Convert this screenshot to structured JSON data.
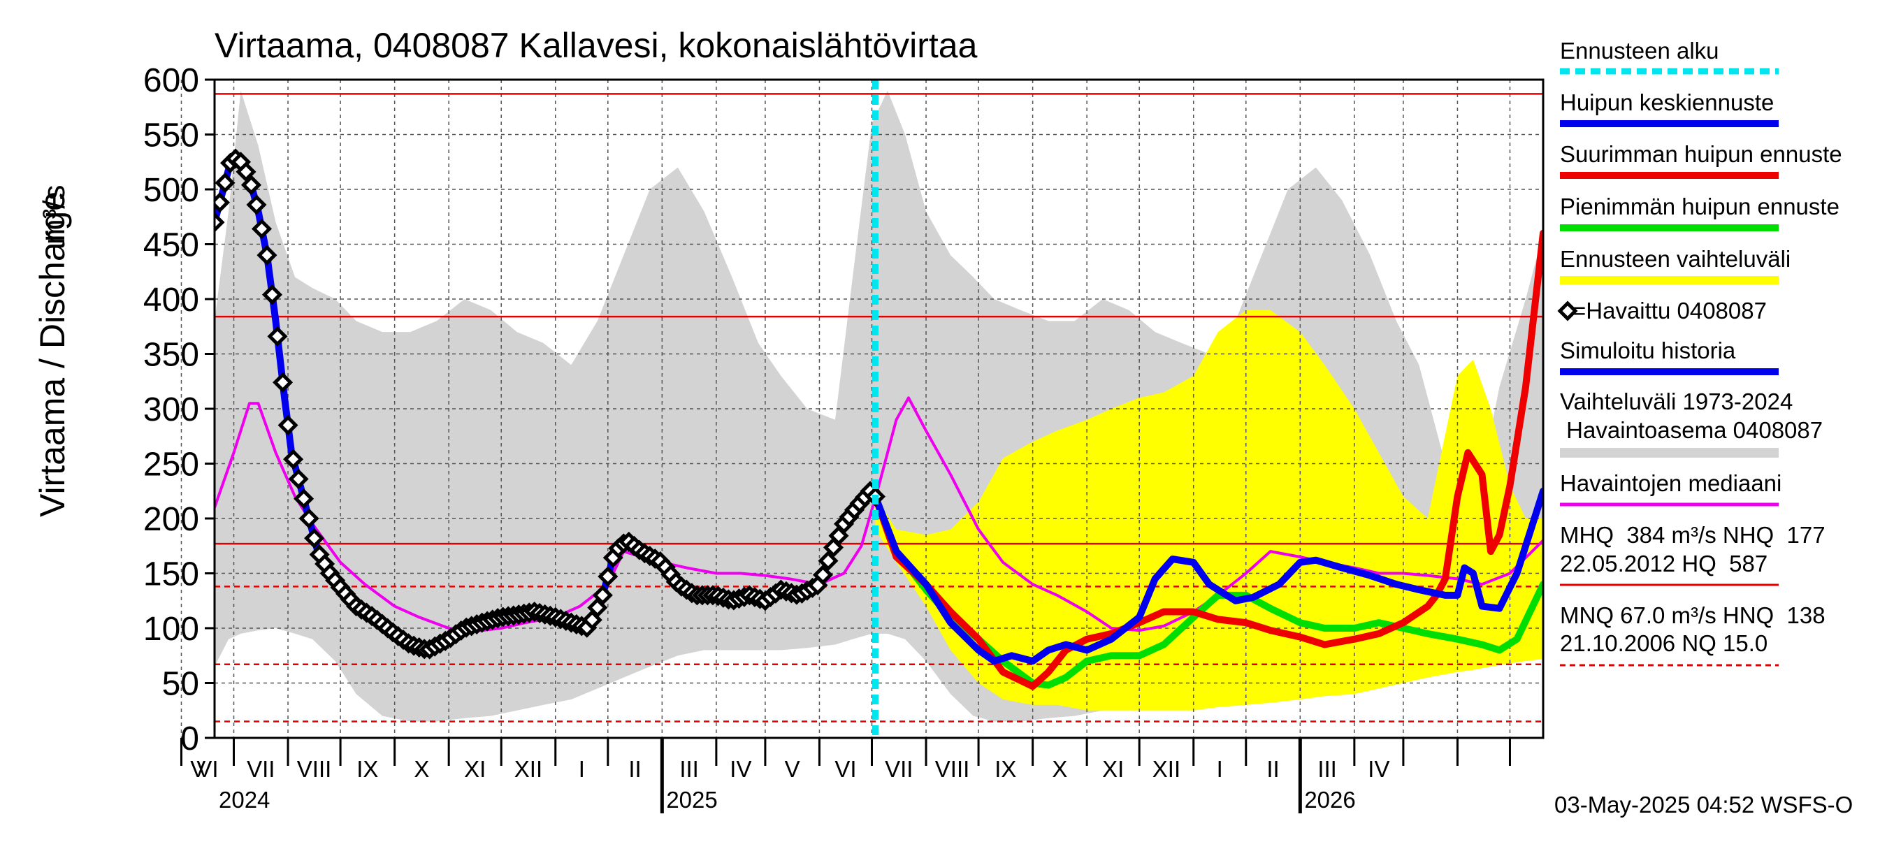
{
  "chart_data": {
    "type": "line",
    "title": "Virtaama, 0408087 Kallavesi, kokonaislähtövirtaa",
    "ylabel": "Virtaama / Discharge",
    "yunit": "m³/s",
    "ylim": [
      0,
      600
    ],
    "yticks": [
      "0",
      "50",
      "100",
      "150",
      "200",
      "250",
      "300",
      "350",
      "400",
      "450",
      "500",
      "550",
      "600"
    ],
    "xlim": [
      "2024-04-20",
      "2026-05-20"
    ],
    "forecast_start": "2025-05-03",
    "months": [
      "V",
      "VI",
      "VII",
      "VIII",
      "IX",
      "X",
      "XI",
      "XII",
      "I",
      "II",
      "III",
      "IV",
      "V",
      "VI",
      "VII",
      "VIII",
      "IX",
      "X",
      "XI",
      "XII",
      "I",
      "II",
      "III",
      "IV"
    ],
    "years": [
      "2024",
      "2025",
      "2026"
    ],
    "grid": true,
    "legend_position": "right",
    "reference_lines": {
      "solid": [
        587,
        384,
        177
      ],
      "dashed": [
        138,
        67,
        15
      ]
    },
    "legend": {
      "forecast_start": "Ennusteen alku",
      "mean_peak": "Huipun keskiennuste",
      "max_peak": "Suurimman huipun ennuste",
      "min_peak": "Pienimmän huipun ennuste",
      "forecast_range": "Ennusteen vaihteluväli",
      "observed": "=Havaittu 0408087",
      "simulated": "Simuloitu historia",
      "hist_range_1": "Vaihteluväli 1973-2024",
      "hist_range_2": " Havaintoasema 0408087",
      "median": "Havaintojen mediaani",
      "stats_1": "MHQ  384 m³/s NHQ  177",
      "stats_2": "22.05.2012 HQ  587",
      "stats_3": "MNQ 67.0 m³/s HNQ  138",
      "stats_4": "21.10.2006 NQ 15.0"
    },
    "footer": "03-May-2025 04:52 WSFS-O",
    "colors": {
      "forecast_start": "#00e5ee",
      "mean_peak": "#0000ee",
      "max_peak": "#ee0000",
      "min_peak": "#00dd00",
      "forecast_range": "#ffff00",
      "hist_range": "#d3d3d3",
      "median": "#ee00ee",
      "reference": "#e00000"
    },
    "series": [
      {
        "name": "Vaihteluväli 1973-2024 Havaintoasema 0408087",
        "kind": "band",
        "x": [
          "2024-04-20",
          "2024-04-28",
          "2024-05-05",
          "2024-05-15",
          "2024-05-25",
          "2024-06-05",
          "2024-06-15",
          "2024-06-28",
          "2024-07-10",
          "2024-07-25",
          "2024-08-10",
          "2024-08-25",
          "2024-09-10",
          "2024-09-25",
          "2024-10-10",
          "2024-10-25",
          "2024-11-10",
          "2024-11-25",
          "2024-12-10",
          "2024-12-25",
          "2025-01-10",
          "2025-01-25",
          "2025-02-10",
          "2025-02-25",
          "2025-03-10",
          "2025-03-25",
          "2025-04-10",
          "2025-04-20",
          "2025-05-01",
          "2025-05-10",
          "2025-05-20",
          "2025-06-01",
          "2025-06-15",
          "2025-06-28",
          "2025-07-10",
          "2025-07-25",
          "2025-08-10",
          "2025-08-25",
          "2025-09-10",
          "2025-09-25",
          "2025-10-10",
          "2025-10-25",
          "2025-11-10",
          "2025-11-25",
          "2025-12-10",
          "2025-12-25",
          "2026-01-10",
          "2026-01-25",
          "2026-02-10",
          "2026-02-25",
          "2026-03-10",
          "2026-03-25",
          "2026-04-10",
          "2026-04-25",
          "2026-05-10",
          "2026-05-20"
        ],
        "high": [
          380,
          480,
          590,
          540,
          470,
          420,
          410,
          400,
          380,
          370,
          370,
          380,
          400,
          390,
          370,
          360,
          340,
          380,
          440,
          500,
          520,
          480,
          420,
          360,
          330,
          300,
          290,
          420,
          560,
          590,
          550,
          480,
          440,
          420,
          400,
          390,
          380,
          380,
          400,
          390,
          370,
          360,
          350,
          380,
          440,
          500,
          520,
          490,
          440,
          380,
          340,
          250,
          200,
          320,
          400,
          460
        ],
        "low": [
          65,
          90,
          95,
          98,
          100,
          95,
          90,
          70,
          40,
          20,
          15,
          15,
          18,
          20,
          25,
          30,
          35,
          45,
          55,
          65,
          75,
          80,
          80,
          80,
          80,
          82,
          85,
          90,
          95,
          95,
          90,
          70,
          40,
          20,
          15,
          15,
          18,
          20,
          25,
          30,
          35,
          40,
          45,
          55,
          65,
          70,
          75,
          78,
          80,
          80,
          82,
          82,
          85,
          90,
          92,
          95
        ]
      },
      {
        "name": "Ennusteen vaihteluväli",
        "kind": "band",
        "x": [
          "2025-05-03",
          "2025-05-15",
          "2025-06-01",
          "2025-06-15",
          "2025-07-01",
          "2025-07-15",
          "2025-08-01",
          "2025-08-15",
          "2025-09-01",
          "2025-09-15",
          "2025-10-01",
          "2025-10-15",
          "2025-11-01",
          "2025-11-15",
          "2025-12-01",
          "2025-12-15",
          "2026-01-01",
          "2026-01-15",
          "2026-02-01",
          "2026-02-15",
          "2026-03-01",
          "2026-03-15",
          "2026-04-01",
          "2026-04-10",
          "2026-04-20",
          "2026-05-01",
          "2026-05-10",
          "2026-05-20"
        ],
        "high": [
          220,
          190,
          185,
          190,
          215,
          255,
          270,
          280,
          290,
          300,
          310,
          315,
          330,
          370,
          390,
          390,
          370,
          340,
          300,
          260,
          220,
          200,
          330,
          345,
          300,
          230,
          200,
          200
        ],
        "low": [
          190,
          160,
          120,
          80,
          50,
          35,
          30,
          30,
          25,
          25,
          25,
          25,
          25,
          28,
          30,
          32,
          35,
          38,
          40,
          45,
          50,
          55,
          60,
          62,
          65,
          68,
          70,
          72
        ]
      },
      {
        "name": "Havaittu 0408087",
        "kind": "observed",
        "x": [
          "2024-04-20",
          "2024-04-25",
          "2024-04-30",
          "2024-05-05",
          "2024-05-10",
          "2024-05-15",
          "2024-05-20",
          "2024-05-25",
          "2024-05-30",
          "2024-06-03",
          "2024-06-08",
          "2024-06-13",
          "2024-06-18",
          "2024-06-25",
          "2024-07-02",
          "2024-07-10",
          "2024-07-20",
          "2024-08-01",
          "2024-08-10",
          "2024-08-20",
          "2024-09-01",
          "2024-09-10",
          "2024-09-20",
          "2024-10-01",
          "2024-10-10",
          "2024-10-20",
          "2024-11-01",
          "2024-11-10",
          "2024-11-20",
          "2024-11-28",
          "2024-12-05",
          "2024-12-12",
          "2024-12-20",
          "2025-01-01",
          "2025-01-10",
          "2025-01-20",
          "2025-02-01",
          "2025-02-10",
          "2025-02-20",
          "2025-03-01",
          "2025-03-10",
          "2025-03-20",
          "2025-04-01",
          "2025-04-08",
          "2025-04-15",
          "2025-04-22",
          "2025-04-30",
          "2025-05-03"
        ],
        "values": [
          470,
          500,
          530,
          525,
          510,
          480,
          440,
          380,
          310,
          260,
          230,
          200,
          170,
          150,
          135,
          120,
          110,
          95,
          85,
          80,
          90,
          100,
          105,
          110,
          112,
          115,
          110,
          105,
          100,
          130,
          170,
          180,
          170,
          160,
          140,
          130,
          130,
          125,
          130,
          125,
          135,
          130,
          140,
          170,
          195,
          210,
          225,
          220
        ]
      },
      {
        "name": "Huipun keskiennuste",
        "kind": "forecast",
        "x": [
          "2025-05-03",
          "2025-05-15",
          "2025-06-01",
          "2025-06-15",
          "2025-07-01",
          "2025-07-10",
          "2025-07-20",
          "2025-08-01",
          "2025-08-10",
          "2025-08-20",
          "2025-09-01",
          "2025-09-15",
          "2025-10-01",
          "2025-10-10",
          "2025-10-20",
          "2025-11-01",
          "2025-11-10",
          "2025-11-25",
          "2025-12-05",
          "2025-12-20",
          "2026-01-01",
          "2026-01-10",
          "2026-01-25",
          "2026-02-10",
          "2026-02-25",
          "2026-03-10",
          "2026-03-25",
          "2026-04-01",
          "2026-04-05",
          "2026-04-10",
          "2026-04-15",
          "2026-04-25",
          "2026-05-05",
          "2026-05-10",
          "2026-05-20"
        ],
        "values": [
          220,
          170,
          140,
          105,
          80,
          70,
          75,
          70,
          80,
          85,
          80,
          90,
          110,
          145,
          163,
          160,
          140,
          125,
          128,
          140,
          160,
          162,
          155,
          148,
          140,
          135,
          130,
          130,
          155,
          150,
          120,
          118,
          150,
          175,
          225
        ]
      },
      {
        "name": "Suurimman huipun ennuste",
        "kind": "forecast",
        "x": [
          "2025-05-03",
          "2025-05-15",
          "2025-06-01",
          "2025-06-15",
          "2025-07-01",
          "2025-07-15",
          "2025-08-01",
          "2025-08-10",
          "2025-08-20",
          "2025-09-01",
          "2025-09-15",
          "2025-10-01",
          "2025-10-15",
          "2025-11-01",
          "2025-11-15",
          "2025-12-01",
          "2025-12-15",
          "2026-01-01",
          "2026-01-15",
          "2026-02-01",
          "2026-02-15",
          "2026-03-01",
          "2026-03-15",
          "2026-03-20",
          "2026-03-25",
          "2026-04-01",
          "2026-04-07",
          "2026-04-15",
          "2026-04-20",
          "2026-04-25",
          "2026-05-01",
          "2026-05-10",
          "2026-05-20"
        ],
        "values": [
          220,
          165,
          140,
          115,
          90,
          60,
          47,
          60,
          80,
          90,
          95,
          105,
          115,
          115,
          108,
          105,
          98,
          92,
          85,
          90,
          95,
          105,
          120,
          130,
          145,
          220,
          260,
          240,
          170,
          185,
          230,
          320,
          460
        ]
      },
      {
        "name": "Pienimmän huipun ennuste",
        "kind": "forecast",
        "x": [
          "2025-05-03",
          "2025-05-15",
          "2025-06-01",
          "2025-06-15",
          "2025-07-01",
          "2025-07-15",
          "2025-08-01",
          "2025-08-10",
          "2025-08-20",
          "2025-09-01",
          "2025-09-15",
          "2025-10-01",
          "2025-10-15",
          "2025-11-01",
          "2025-11-15",
          "2025-12-01",
          "2025-12-15",
          "2026-01-01",
          "2026-01-15",
          "2026-02-01",
          "2026-02-15",
          "2026-03-01",
          "2026-03-15",
          "2026-04-01",
          "2026-04-15",
          "2026-04-25",
          "2026-05-05",
          "2026-05-20"
        ],
        "values": [
          220,
          170,
          135,
          110,
          90,
          70,
          50,
          48,
          55,
          70,
          75,
          75,
          85,
          110,
          130,
          130,
          118,
          105,
          100,
          100,
          105,
          100,
          95,
          90,
          85,
          80,
          90,
          140
        ]
      },
      {
        "name": "Havaintojen mediaani",
        "kind": "median",
        "x": [
          "2024-04-20",
          "2024-05-01",
          "2024-05-10",
          "2024-05-15",
          "2024-05-25",
          "2024-06-05",
          "2024-06-15",
          "2024-07-01",
          "2024-07-15",
          "2024-08-01",
          "2024-08-15",
          "2024-09-01",
          "2024-09-15",
          "2024-10-01",
          "2024-10-15",
          "2024-11-01",
          "2024-11-15",
          "2024-12-01",
          "2024-12-10",
          "2024-12-20",
          "2025-01-01",
          "2025-01-15",
          "2025-02-01",
          "2025-02-15",
          "2025-03-01",
          "2025-03-15",
          "2025-04-01",
          "2025-04-15",
          "2025-04-25",
          "2025-05-05",
          "2025-05-15",
          "2025-05-22",
          "2025-06-01",
          "2025-06-15",
          "2025-07-01",
          "2025-07-15",
          "2025-08-01",
          "2025-08-15",
          "2025-09-01",
          "2025-09-15",
          "2025-10-01",
          "2025-10-15",
          "2025-11-01",
          "2025-11-15",
          "2025-12-01",
          "2025-12-15",
          "2026-01-01",
          "2026-01-15",
          "2026-02-01",
          "2026-02-15",
          "2026-03-01",
          "2026-03-15",
          "2026-04-01",
          "2026-04-15",
          "2026-05-01",
          "2026-05-20"
        ],
        "values": [
          210,
          260,
          305,
          305,
          260,
          220,
          195,
          160,
          140,
          120,
          110,
          100,
          97,
          100,
          105,
          110,
          120,
          140,
          170,
          165,
          160,
          155,
          150,
          150,
          148,
          145,
          140,
          150,
          175,
          230,
          290,
          310,
          280,
          240,
          190,
          160,
          140,
          130,
          115,
          100,
          98,
          102,
          115,
          130,
          150,
          170,
          165,
          160,
          155,
          150,
          150,
          148,
          145,
          140,
          150,
          180
        ]
      }
    ]
  }
}
